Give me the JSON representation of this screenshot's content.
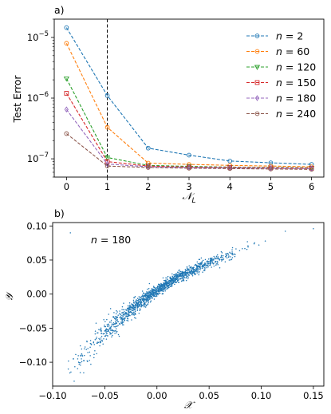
{
  "chart_data": [
    {
      "type": "line",
      "panel_label": "a)",
      "ylabel": "Test Error",
      "xlabel": "𝒩_L",
      "xlabel_main": "𝒩",
      "xlabel_sub": "L",
      "yscale": "log",
      "xlim": [
        -0.3,
        6.3
      ],
      "ylim": [
        5e-08,
        2e-05
      ],
      "xticks": [
        0,
        1,
        2,
        3,
        4,
        5,
        6
      ],
      "ytick_labels": [
        {
          "value": 1e-07,
          "base": "10",
          "exp": "−7"
        },
        {
          "value": 1e-06,
          "base": "10",
          "exp": "−6"
        },
        {
          "value": 1e-05,
          "base": "10",
          "exp": "−5"
        }
      ],
      "vline_x": 1,
      "legend_position": "top-right",
      "x": [
        0,
        1,
        2,
        3,
        4,
        5,
        6
      ],
      "series": [
        {
          "name": "n = 2",
          "name_var": "n",
          "name_value": "2",
          "color": "#1f77b4",
          "marker": "circle",
          "values": [
            1.45e-05,
            1.1e-06,
            1.5e-07,
            1.15e-07,
            9.2e-08,
            8.6e-08,
            8.1e-08
          ]
        },
        {
          "name": "n = 60",
          "name_var": "n",
          "name_value": "60",
          "color": "#ff7f0e",
          "marker": "circle",
          "values": [
            8e-06,
            3.3e-07,
            8.5e-08,
            8.1e-08,
            7.8e-08,
            7.6e-08,
            7.4e-08
          ]
        },
        {
          "name": "n = 120",
          "name_var": "n",
          "name_value": "120",
          "color": "#2ca02c",
          "marker": "triangle-down",
          "values": [
            2.1e-06,
            1.05e-07,
            7.8e-08,
            7.5e-08,
            7.3e-08,
            7.2e-08,
            7.1e-08
          ]
        },
        {
          "name": "n = 150",
          "name_var": "n",
          "name_value": "150",
          "color": "#d62728",
          "marker": "square",
          "values": [
            1.2e-06,
            9e-08,
            7.6e-08,
            7.3e-08,
            7.2e-08,
            7.1e-08,
            7e-08
          ]
        },
        {
          "name": "n = 180",
          "name_var": "n",
          "name_value": "180",
          "color": "#9467bd",
          "marker": "diamond",
          "values": [
            6.5e-07,
            8.2e-08,
            7.4e-08,
            7.2e-08,
            7.1e-08,
            7e-08,
            6.9e-08
          ]
        },
        {
          "name": "n = 240",
          "name_var": "n",
          "name_value": "240",
          "color": "#8c564b",
          "marker": "circle",
          "values": [
            2.6e-07,
            7.6e-08,
            7.2e-08,
            7e-08,
            6.9e-08,
            6.8e-08,
            6.7e-08
          ]
        }
      ]
    },
    {
      "type": "scatter",
      "panel_label": "b)",
      "xlabel": "𝒳",
      "ylabel": "𝒴",
      "xlim": [
        -0.1,
        0.16
      ],
      "ylim": [
        -0.135,
        0.105
      ],
      "xticks": [
        -0.1,
        -0.05,
        0.0,
        0.05,
        0.1,
        0.15
      ],
      "xtick_labels": [
        "−0.10",
        "−0.05",
        "0.00",
        "0.05",
        "0.10",
        "0.15"
      ],
      "yticks": [
        -0.1,
        -0.05,
        0.0,
        0.05,
        0.1
      ],
      "ytick_labels": [
        "−0.10",
        "−0.05",
        "0.00",
        "0.05",
        "0.10"
      ],
      "annotation": "n = 180",
      "annotation_var": "n",
      "annotation_value": "180",
      "color": "#1f77b4",
      "trend": [
        {
          "x": -0.085,
          "y": -0.115
        },
        {
          "x": -0.07,
          "y": -0.09
        },
        {
          "x": -0.05,
          "y": -0.055
        },
        {
          "x": -0.03,
          "y": -0.03
        },
        {
          "x": -0.01,
          "y": -0.005
        },
        {
          "x": 0.0,
          "y": 0.005
        },
        {
          "x": 0.02,
          "y": 0.025
        },
        {
          "x": 0.05,
          "y": 0.045
        },
        {
          "x": 0.08,
          "y": 0.065
        },
        {
          "x": 0.1,
          "y": 0.078
        },
        {
          "x": 0.13,
          "y": 0.09
        },
        {
          "x": 0.15,
          "y": 0.095
        }
      ],
      "point_count": 1400
    }
  ]
}
